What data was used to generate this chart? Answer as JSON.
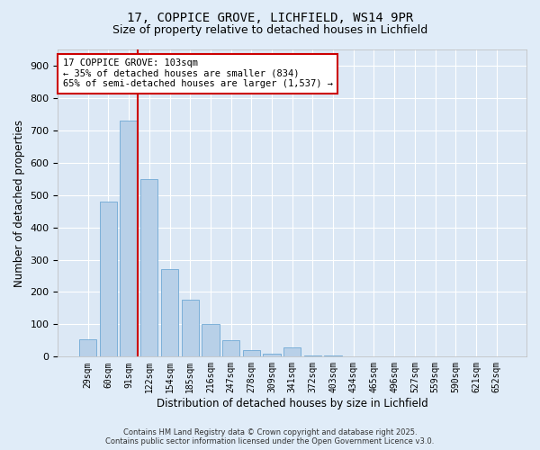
{
  "title_line1": "17, COPPICE GROVE, LICHFIELD, WS14 9PR",
  "title_line2": "Size of property relative to detached houses in Lichfield",
  "xlabel": "Distribution of detached houses by size in Lichfield",
  "ylabel": "Number of detached properties",
  "categories": [
    "29sqm",
    "60sqm",
    "91sqm",
    "122sqm",
    "154sqm",
    "185sqm",
    "216sqm",
    "247sqm",
    "278sqm",
    "309sqm",
    "341sqm",
    "372sqm",
    "403sqm",
    "434sqm",
    "465sqm",
    "496sqm",
    "527sqm",
    "559sqm",
    "590sqm",
    "621sqm",
    "652sqm"
  ],
  "values": [
    55,
    480,
    730,
    550,
    270,
    175,
    100,
    50,
    20,
    10,
    30,
    5,
    5,
    0,
    0,
    0,
    0,
    0,
    0,
    0,
    0
  ],
  "bar_color": "#b8d0e8",
  "bar_edge_color": "#6fa8d4",
  "red_line_color": "#cc0000",
  "red_line_bar_index": 2,
  "annotation_text": "17 COPPICE GROVE: 103sqm\n← 35% of detached houses are smaller (834)\n65% of semi-detached houses are larger (1,537) →",
  "annotation_box_facecolor": "#ffffff",
  "annotation_box_edgecolor": "#cc0000",
  "ylim": [
    0,
    950
  ],
  "yticks": [
    0,
    100,
    200,
    300,
    400,
    500,
    600,
    700,
    800,
    900
  ],
  "background_color": "#dce8f5",
  "fig_background_color": "#e0ecf8",
  "footer_line1": "Contains HM Land Registry data © Crown copyright and database right 2025.",
  "footer_line2": "Contains public sector information licensed under the Open Government Licence v3.0.",
  "title_fontsize": 10,
  "subtitle_fontsize": 9,
  "axis_label_fontsize": 8.5,
  "tick_fontsize": 7,
  "annotation_fontsize": 7.5,
  "footer_fontsize": 6
}
